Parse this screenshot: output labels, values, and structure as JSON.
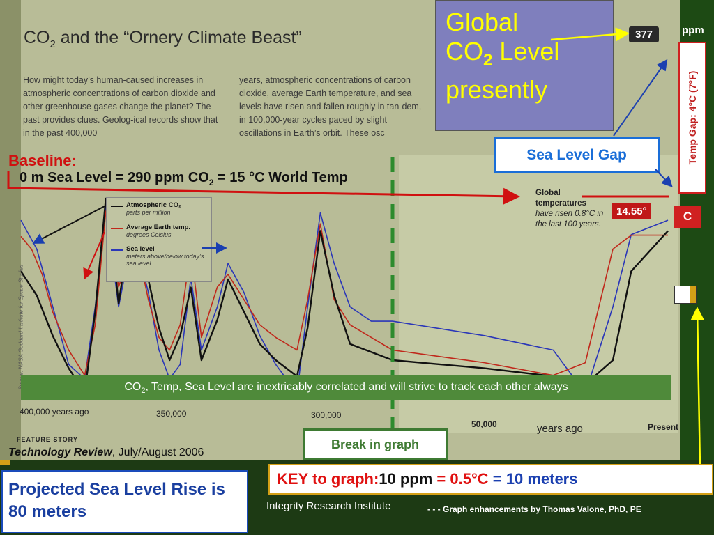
{
  "page_title": {
    "prefix": "CO",
    "sub": "2",
    "suffix": " and the “Ornery Climate Beast”"
  },
  "intro_text": {
    "left": "How might today’s human-caused increases in atmospheric concentrations of carbon dioxide and other greenhouse gases change the planet? The past provides clues. Geolog-ical records show that in the past 400,000",
    "right": "years, atmospheric concentrations of carbon dioxide, average Earth temperature, and sea levels have risen and fallen roughly in tan-dem, in 100,000-year cycles paced by slight oscillations in Earth’s orbit. These osc"
  },
  "source_note": "Source: NASA Goddard Institute for Space Studies",
  "co2_box": {
    "line1": "Global",
    "line2_prefix": "CO",
    "line2_sub": "2",
    "line2_suffix": " Level",
    "line3": "presently"
  },
  "ppm_badge": "377",
  "ppm_label": "ppm",
  "sea_level_gap": "Sea Level Gap",
  "temp_gap": "Temp Gap: 4°C (7°F)",
  "c_badge": "C",
  "baseline": {
    "label": "Baseline:",
    "text_a": "0 m Sea Level = 290 ppm CO",
    "text_sub": "2",
    "text_b": " = 15 °C World Temp"
  },
  "legend": {
    "co2_title": "Atmospheric CO₂",
    "co2_sub": "parts per million",
    "temp_title": "Average Earth temp.",
    "temp_sub": "degrees Celsius",
    "sea_title": "Sea level",
    "sea_sub": "meters above/below today’s sea level"
  },
  "global_note": {
    "bold": "Global temperatures",
    "italic": "have risen 0.8°C in the last 100 years."
  },
  "temp_badge": "14.55°",
  "correlation": {
    "prefix": "CO",
    "sub": "2",
    "suffix": ", Temp, Sea Level are inextricably correlated and will strive to track each other always"
  },
  "x_ticks": [
    "400,000 years ago",
    "350,000",
    "300,000",
    "50,000",
    "Present"
  ],
  "years_ago": "years ago",
  "feature_story": "FEATURE STORY",
  "break_label": "Break in graph",
  "citation": {
    "italic": "Technology Review",
    "rest": ", July/August 2006"
  },
  "projected": "Projected Sea Level Rise is 80 meters",
  "key": {
    "label": "KEY to graph:",
    "ppm": "10 ppm",
    "eq1": " = ",
    "deg": "0.5°C",
    "eq2": " = ",
    "meters": "10 meters"
  },
  "institute": "Integrity Research Institute",
  "credit": "- - - Graph enhancements by Thomas Valone, PhD, PE",
  "colors": {
    "co2": "#111111",
    "temp": "#c0281b",
    "sea": "#2a36b8",
    "accent_red": "#d01010",
    "accent_blue": "#1a6ed8",
    "break_green": "#2e8b2e"
  },
  "chart_data": {
    "type": "line",
    "x_unit": "years ago",
    "x_ticks": [
      "400,000 years ago",
      "350,000",
      "300,000",
      "50,000",
      "Present"
    ],
    "series": [
      {
        "name": "Atmospheric CO2",
        "x": [
          410000,
          395000,
          380000,
          365000,
          350000,
          340000,
          330000,
          325000,
          318000,
          310000,
          300000,
          290000,
          280000,
          270000,
          260000,
          250000,
          240000,
          225000,
          215000,
          200000,
          185000,
          170000,
          150000,
          140000,
          128000,
          115000,
          100000,
          80000,
          60000,
          40000,
          25000,
          18000,
          12000,
          8000,
          0
        ],
        "values": [
          255,
          240,
          215,
          195,
          180,
          230,
          300,
          280,
          235,
          270,
          280,
          250,
          220,
          200,
          215,
          245,
          200,
          225,
          250,
          230,
          210,
          200,
          190,
          220,
          280,
          240,
          210,
          205,
          200,
          195,
          190,
          185,
          200,
          255,
          280
        ]
      },
      {
        "name": "Average Earth temp.",
        "x": [
          410000,
          400000,
          390000,
          380000,
          365000,
          350000,
          340000,
          330000,
          325000,
          318000,
          310000,
          300000,
          290000,
          280000,
          270000,
          260000,
          250000,
          240000,
          225000,
          215000,
          200000,
          185000,
          170000,
          150000,
          140000,
          128000,
          115000,
          100000,
          80000,
          60000,
          40000,
          25000,
          18000,
          12000,
          8000,
          0
        ],
        "values": [
          14.5,
          14.0,
          13.0,
          11.5,
          10.0,
          9.0,
          11.0,
          15.5,
          14.5,
          12.5,
          13.5,
          14.0,
          12.0,
          10.5,
          10.0,
          11.0,
          14.0,
          10.5,
          12.5,
          13.0,
          12.0,
          11.0,
          10.5,
          10.0,
          12.0,
          15.0,
          12.0,
          11.0,
          10.5,
          10.0,
          9.5,
          9.0,
          9.5,
          14.0,
          14.55,
          14.55
        ]
      },
      {
        "name": "Sea level",
        "x": [
          410000,
          395000,
          380000,
          365000,
          350000,
          340000,
          330000,
          325000,
          318000,
          310000,
          300000,
          290000,
          280000,
          270000,
          260000,
          250000,
          240000,
          225000,
          215000,
          200000,
          185000,
          170000,
          150000,
          140000,
          128000,
          115000,
          100000,
          80000,
          60000,
          40000,
          25000,
          18000,
          12000,
          8000,
          0
        ],
        "values": [
          0,
          -20,
          -60,
          -100,
          -110,
          -60,
          10,
          -20,
          -60,
          -30,
          -20,
          -50,
          -90,
          -110,
          -100,
          -40,
          -90,
          -60,
          -30,
          -50,
          -80,
          -100,
          -120,
          -60,
          5,
          -30,
          -60,
          -70,
          -70,
          -80,
          -90,
          -120,
          -60,
          -10,
          0
        ]
      }
    ],
    "baseline": "0 m Sea Level = 290 ppm CO2 = 15 °C World Temp",
    "annotations": [
      "Global temperatures have risen 0.8°C in the last 100 years.",
      "14.55°",
      "377 ppm"
    ]
  }
}
